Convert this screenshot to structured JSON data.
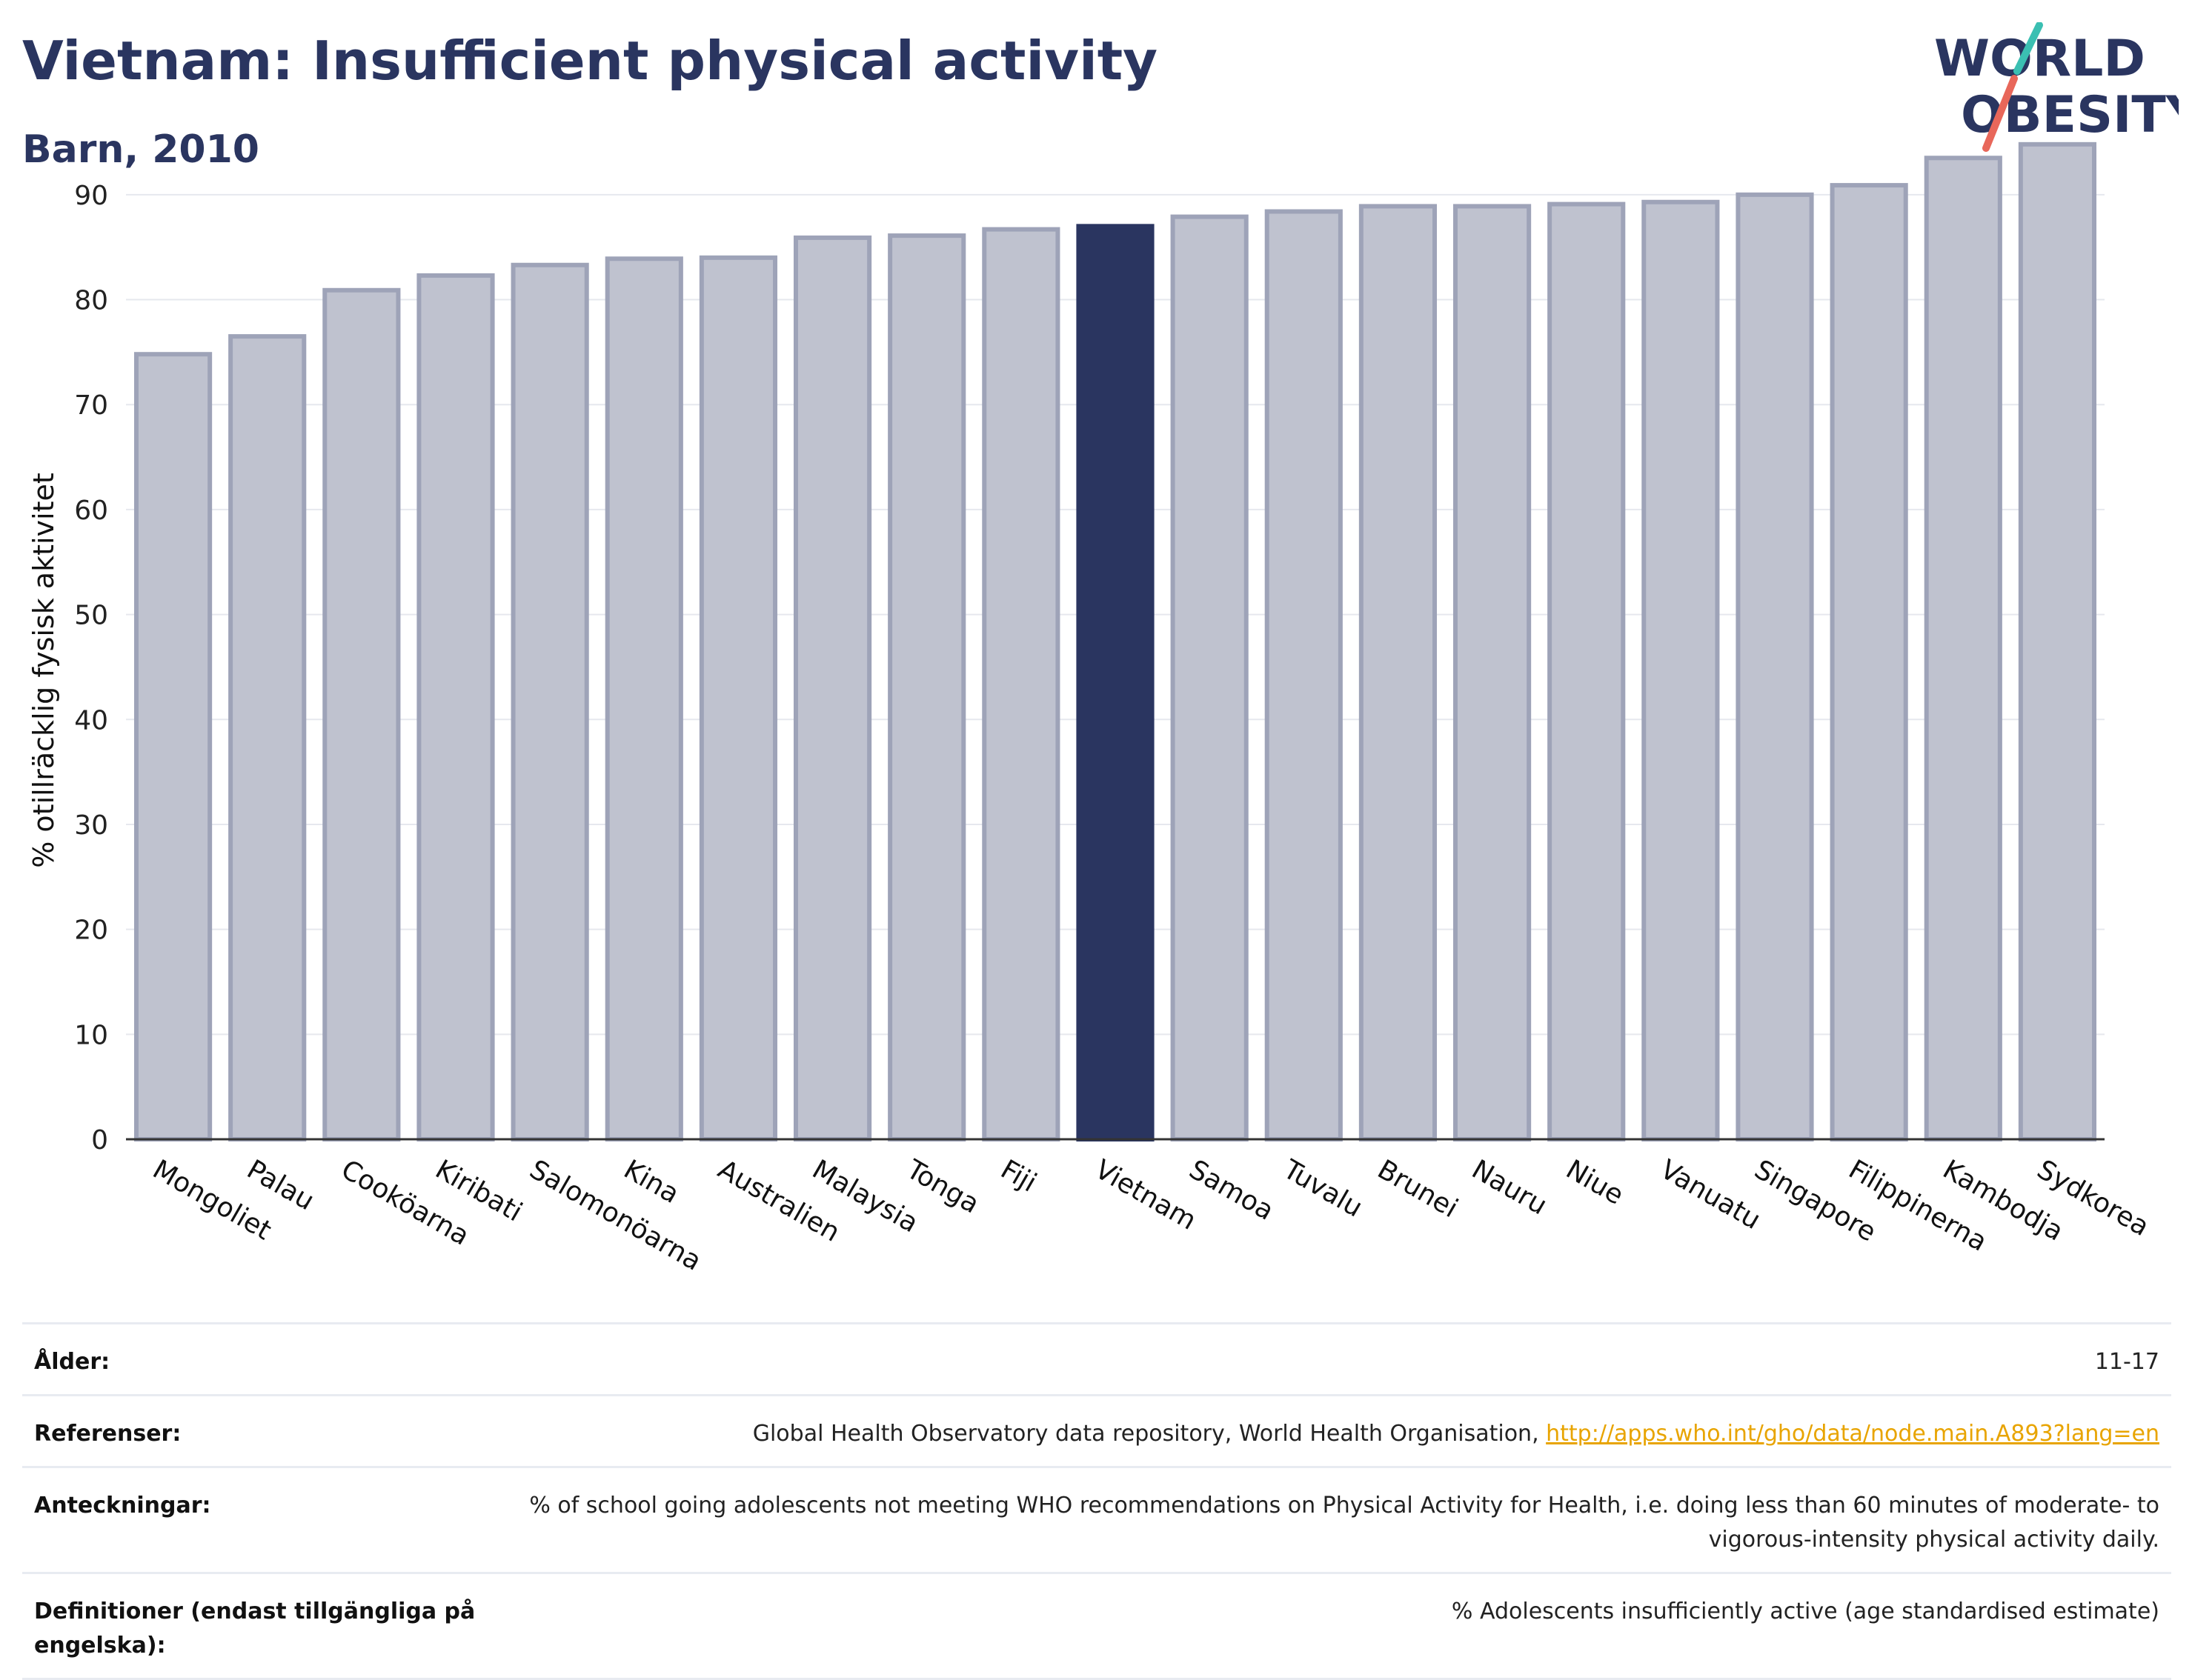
{
  "header": {
    "title": "Vietnam: Insufficient physical activity",
    "subtitle": "Barn, 2010"
  },
  "logo": {
    "line1": "WORLD",
    "line2": "OBESITY"
  },
  "colors": {
    "highlight": "#2a3560",
    "bar_fill": "#bfc2cf",
    "bar_stroke": "#9ea3b8",
    "logo_teal": "#3bbfb2",
    "logo_red": "#e8675a",
    "link": "#e8a400"
  },
  "chart_data": {
    "type": "bar",
    "title": "Vietnam: Insufficient physical activity",
    "subtitle": "Barn, 2010",
    "ylabel": "% otillräcklig fysisk aktivitet",
    "xlabel": "",
    "ylim": [
      0,
      95
    ],
    "yticks": [
      0,
      10,
      20,
      30,
      40,
      50,
      60,
      70,
      80,
      90
    ],
    "grid": true,
    "highlight": "Vietnam",
    "categories": [
      "Mongoliet",
      "Palau",
      "Cooköarna",
      "Kiribati",
      "Salomonöarna",
      "Kina",
      "Australien",
      "Malaysia",
      "Tonga",
      "Fiji",
      "Vietnam",
      "Samoa",
      "Tuvalu",
      "Brunei",
      "Nauru",
      "Niue",
      "Vanuatu",
      "Singapore",
      "Filippinerna",
      "Kambodja",
      "Sydkorea"
    ],
    "values": [
      74.8,
      76.5,
      80.9,
      82.3,
      83.3,
      83.9,
      84.0,
      85.9,
      86.1,
      86.7,
      87.0,
      87.9,
      88.4,
      88.9,
      88.9,
      89.1,
      89.3,
      90.0,
      90.9,
      93.5,
      94.8
    ]
  },
  "meta": [
    {
      "label": "Ålder:",
      "value": "11-17"
    },
    {
      "label": "Referenser:",
      "value": "Global Health Observatory data repository, World Health Organisation, ",
      "link": "http://apps.who.int/gho/data/node.main.A893?lang=en"
    },
    {
      "label": "Anteckningar:",
      "value": "% of school going adolescents not meeting WHO recommendations on Physical Activity for Health, i.e. doing less than 60 minutes of moderate- to vigorous-intensity physical activity daily."
    },
    {
      "label": "Definitioner (endast tillgängliga på engelska):",
      "value": "% Adolescents insufficiently active (age standardised estimate)"
    }
  ]
}
